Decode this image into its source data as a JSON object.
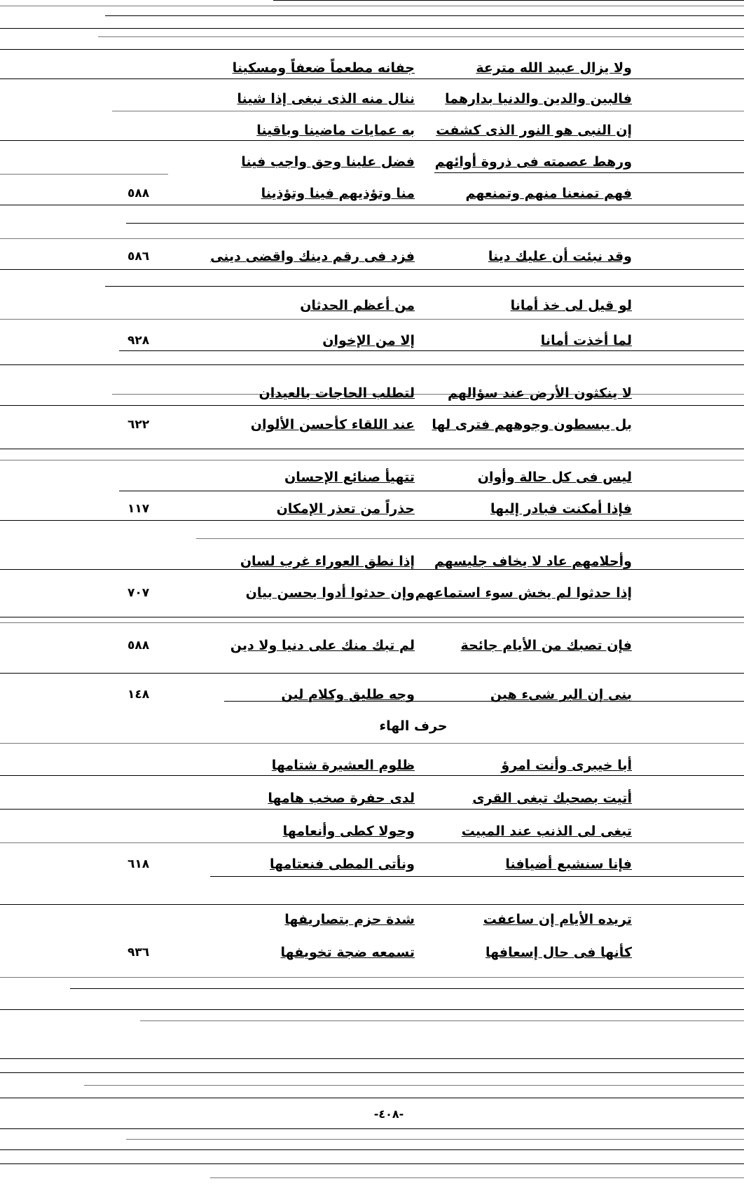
{
  "verses": [
    {
      "first": "ولا يزال عبيد الله مترعة",
      "second": "جفانه مطعماً ضعفاً ومسكينا",
      "page": ""
    },
    {
      "first": "فالبين والدين والدنيا بدارهما",
      "second": "ننال منه الذى نبغى إذا شينا",
      "page": ""
    },
    {
      "first": "إن النبى هو النور الذى كشفت",
      "second": "به عمايات ماضينا وباقينا",
      "page": ""
    },
    {
      "first": "ورهط عصمته فى ذروة أوائهم",
      "second": "فضل علينا وحق واجب فينا",
      "page": ""
    },
    {
      "first": "فهم تمنعنا منهم وتمنعهم",
      "second": "منا وتؤذيهم فينا وتؤذينا",
      "page": "٥٨٨"
    },
    {
      "first": "وقد نبئت أن عليك دينا",
      "second": "فزد فى رقم دينك واقضى دينى",
      "page": "٥٨٦"
    },
    {
      "first": "لو قيل لى خذ أمانا",
      "second": "من أعظم الحدثان",
      "page": ""
    },
    {
      "first": "لما أخذت أمانا",
      "second": "إلا من الإخوان",
      "page": "٩٢٨"
    },
    {
      "first": "لا ينكثون الأرض عند سؤالهم",
      "second": "لتطلب الحاجات بالعيدان",
      "page": ""
    },
    {
      "first": "بل يبسطون وجوههم فترى لها",
      "second": "عند اللقاء كأحسن الألوان",
      "page": "٦٢٢"
    },
    {
      "first": "ليس فى كل حالة وأوان",
      "second": "تتهيأ صنائع الإحسان",
      "page": ""
    },
    {
      "first": "فإذا أمكنت فبادر إليها",
      "second": "حذراً من تعذر الإمكان",
      "page": "١١٧"
    },
    {
      "first": "وأحلامهم عاد لا يخاف جليسهم",
      "second": "إذا نطق العوراء غرب لسان",
      "page": ""
    },
    {
      "first": "إذا حدثوا لم يخش سوء استماعهم",
      "second": "وإن حدثوا أدوا بحسن بيان",
      "page": "٧٠٧"
    },
    {
      "first": "فإن تصبك من الأيام جائحة",
      "second": "لم تبك منك على دنيا ولا دين",
      "page": "٥٨٨"
    },
    {
      "first": "بنى إن البر شىء هين",
      "second": "وجه طليق وكلام لين",
      "page": "١٤٨"
    },
    {
      "first": "أبا خيبرى وأنت امرؤ",
      "second": "ظلوم العشيرة شتامها",
      "page": ""
    },
    {
      "first": "أتيت بصحبك تبغى القرى",
      "second": "لدى حفرة صخب هامها",
      "page": ""
    },
    {
      "first": "تبغى لى الذنب عند المبيت",
      "second": "وحولا كطى وأنعامها",
      "page": ""
    },
    {
      "first": "فإنا سنشبع أضيافنا",
      "second": "ونأتى المطى فنعتامها",
      "page": "٦١٨"
    },
    {
      "first": "تريده الأيام إن ساعفت",
      "second": "شدة حزم بتصاريفها",
      "page": ""
    },
    {
      "first": "كأنها فى حال إسعافها",
      "second": "تسمعه ضجة تخويفها",
      "page": "٩٣٦"
    }
  ],
  "section_heading": "حرف الهاء",
  "page_number": "-٤٠٨-"
}
